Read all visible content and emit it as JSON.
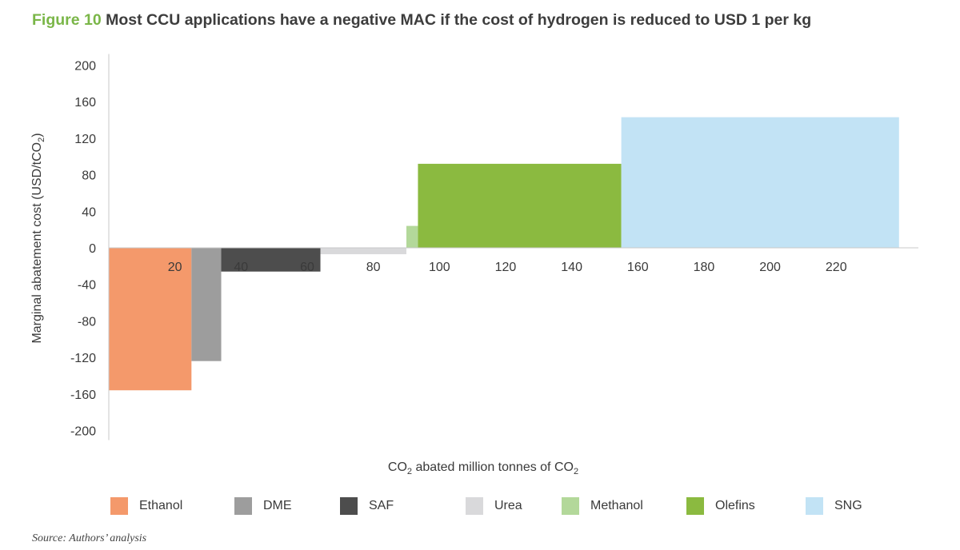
{
  "figure_label": "Figure 10",
  "title": "Most CCU applications have a negative MAC if the cost of hydrogen is reduced to USD 1 per kg",
  "source": "Source: Authors’ analysis",
  "chart_data": {
    "type": "bar",
    "subtype": "marginal-abatement-cost-curve",
    "ylabel_parts": [
      "Marginal abatement cost (USD/tCO",
      "2",
      ")"
    ],
    "xlabel_parts": [
      "CO",
      "2",
      " abated million tonnes of CO",
      "2",
      ""
    ],
    "ylim": [
      -200,
      200
    ],
    "yticks": [
      200,
      160,
      120,
      80,
      40,
      0,
      -40,
      -80,
      -120,
      -160,
      -200
    ],
    "xlim": [
      0,
      240
    ],
    "xticks": [
      20,
      40,
      60,
      80,
      100,
      120,
      140,
      160,
      180,
      200,
      220
    ],
    "grid": false,
    "legend_position": "bottom",
    "series": [
      {
        "name": "Ethanol",
        "x_start": 0,
        "x_end": 25,
        "value": -156,
        "color": "#f4996b"
      },
      {
        "name": "DME",
        "x_start": 25,
        "x_end": 34,
        "value": -124,
        "color": "#9d9d9d"
      },
      {
        "name": "SAF",
        "x_start": 34,
        "x_end": 64,
        "value": -26,
        "color": "#4d4d4d"
      },
      {
        "name": "Urea",
        "x_start": 64,
        "x_end": 90,
        "value": -7,
        "color": "#d9d9db"
      },
      {
        "name": "Methanol",
        "x_start": 90,
        "x_end": 93.5,
        "value": 24,
        "color": "#b3d89a"
      },
      {
        "name": "Olefins",
        "x_start": 93.5,
        "x_end": 155,
        "value": 92,
        "color": "#8bba40"
      },
      {
        "name": "SNG",
        "x_start": 155,
        "x_end": 239,
        "value": 143,
        "color": "#c2e3f5"
      }
    ]
  }
}
